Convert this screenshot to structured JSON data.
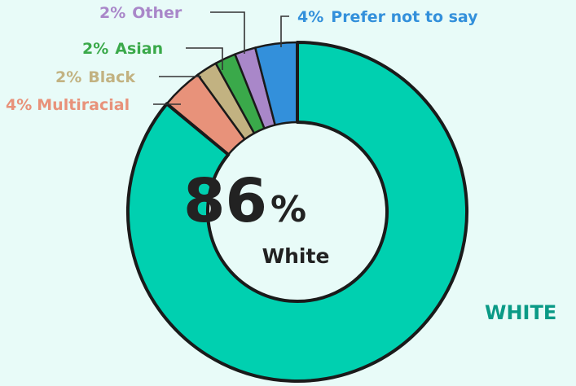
{
  "chart_data": {
    "type": "pie",
    "style": "donut",
    "slices": [
      {
        "label": "White",
        "value": 86,
        "color": "#00d0b0"
      },
      {
        "label": "Multiracial",
        "value": 4,
        "color": "#e8927a"
      },
      {
        "label": "Black",
        "value": 2,
        "color": "#c2b281"
      },
      {
        "label": "Asian",
        "value": 2,
        "color": "#3aa94a"
      },
      {
        "label": "Other",
        "value": 2,
        "color": "#a987c9"
      },
      {
        "label": "Prefer not to say",
        "value": 4,
        "color": "#3390db"
      }
    ],
    "labels": {
      "multiracial": {
        "pct": "4%",
        "name": "Multiracial"
      },
      "black": {
        "pct": "2%",
        "name": "Black"
      },
      "asian": {
        "pct": "2%",
        "name": "Asian"
      },
      "other": {
        "pct": "2%",
        "name": "Other"
      },
      "prefer": {
        "pct": "4%",
        "name": "Prefer not to say"
      }
    },
    "center": {
      "value": "86",
      "unit": "%",
      "label": "White"
    },
    "side_label": "WHITE",
    "side_color": "#0a9a86"
  }
}
